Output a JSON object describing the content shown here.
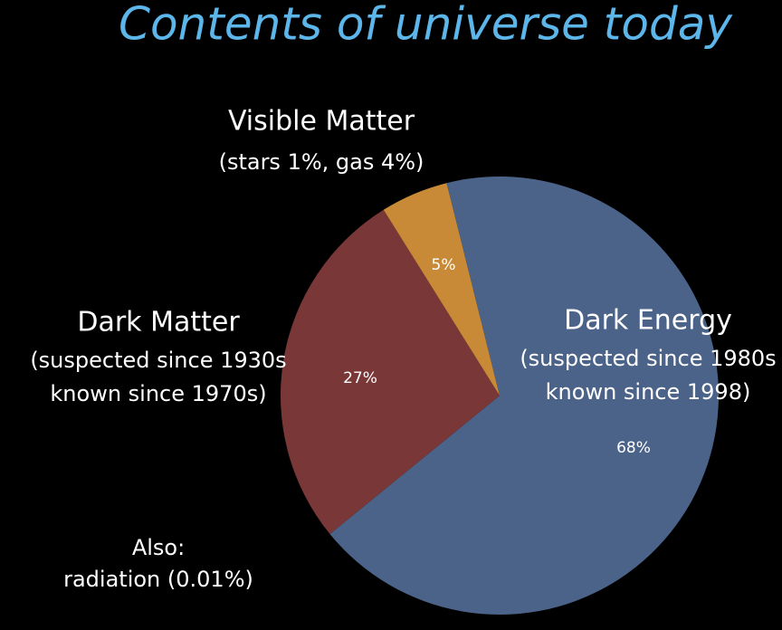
{
  "chart_data": {
    "type": "pie",
    "title": "Contents of universe today",
    "categories": [
      "Dark Energy",
      "Dark Matter",
      "Visible Matter"
    ],
    "category_notes": [
      [
        "(suspected since 1980s",
        "known since 1998)"
      ],
      [
        "(suspected since 1930s",
        "known since 1970s)"
      ],
      [
        "(stars 1%,  gas 4%)"
      ]
    ],
    "values": [
      68,
      27,
      5
    ],
    "value_labels": [
      "68%",
      "27%",
      "5%"
    ],
    "colors": [
      "#4b6389",
      "#7a3737",
      "#c98a37"
    ],
    "annotation": [
      "Also:",
      "radiation (0.01%)"
    ]
  }
}
